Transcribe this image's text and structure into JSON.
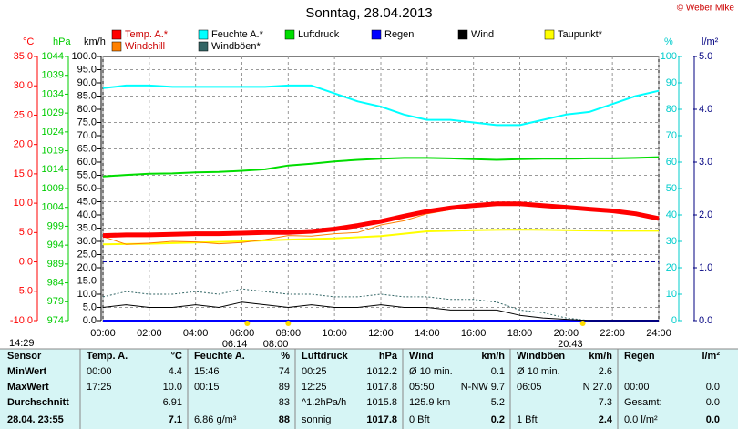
{
  "chart_data": {
    "type": "line",
    "title": "Sonntag, 28.04.2013",
    "credit": "© Weber Mike",
    "x": [
      0,
      1,
      2,
      3,
      4,
      5,
      6,
      7,
      8,
      9,
      10,
      11,
      12,
      13,
      14,
      15,
      16,
      17,
      18,
      19,
      20,
      21,
      22,
      23,
      24
    ],
    "xlim": [
      0,
      24
    ],
    "xticks": [
      {
        "value": 0,
        "label": "00:00"
      },
      {
        "value": 2,
        "label": "02:00"
      },
      {
        "value": 4,
        "label": "04:00"
      },
      {
        "value": 6,
        "label": "06:00"
      },
      {
        "value": 8,
        "label": "08:00"
      },
      {
        "value": 10,
        "label": "10:00"
      },
      {
        "value": 12,
        "label": "12:00"
      },
      {
        "value": 14,
        "label": "14:00"
      },
      {
        "value": 16,
        "label": "16:00"
      },
      {
        "value": 18,
        "label": "18:00"
      },
      {
        "value": 20,
        "label": "20:00"
      },
      {
        "value": 22,
        "label": "22:00"
      },
      {
        "value": 24,
        "label": "24:00"
      }
    ],
    "grid": true,
    "axes": {
      "temp": {
        "label": "°C",
        "color": "#ff0000",
        "side": "left",
        "lim": [
          -10,
          35
        ],
        "ticks": [
          {
            "value": -10,
            "label": "-10.0"
          },
          {
            "value": -5,
            "label": "-5.0"
          },
          {
            "value": 0,
            "label": "0.0"
          },
          {
            "value": 5,
            "label": "5.0"
          },
          {
            "value": 10,
            "label": "10.0"
          },
          {
            "value": 15,
            "label": "15.0"
          },
          {
            "value": 20,
            "label": "20.0"
          },
          {
            "value": 25,
            "label": "25.0"
          },
          {
            "value": 30,
            "label": "30.0"
          },
          {
            "value": 35,
            "label": "35.0"
          }
        ]
      },
      "pressure": {
        "label": "hPa",
        "color": "#00cc00",
        "side": "left",
        "lim": [
          974,
          1044
        ],
        "ticks": [
          974,
          979,
          984,
          989,
          994,
          999,
          1004,
          1009,
          1014,
          1019,
          1024,
          1029,
          1034,
          1039,
          1044
        ]
      },
      "wind": {
        "label": "km/h",
        "color": "#000000",
        "side": "left",
        "lim": [
          0,
          100
        ],
        "ticks": [
          {
            "value": 0,
            "label": "0.0"
          },
          {
            "value": 5,
            "label": "5.0"
          },
          {
            "value": 10,
            "label": "10.0"
          },
          {
            "value": 15,
            "label": "15.0"
          },
          {
            "value": 20,
            "label": "20.0"
          },
          {
            "value": 25,
            "label": "25.0"
          },
          {
            "value": 30,
            "label": "30.0"
          },
          {
            "value": 35,
            "label": "35.0"
          },
          {
            "value": 40,
            "label": "40.0"
          },
          {
            "value": 45,
            "label": "45.0"
          },
          {
            "value": 50,
            "label": "50.0"
          },
          {
            "value": 55,
            "label": "55.0"
          },
          {
            "value": 60,
            "label": "60.0"
          },
          {
            "value": 65,
            "label": "65.0"
          },
          {
            "value": 70,
            "label": "70.0"
          },
          {
            "value": 75,
            "label": "75.0"
          },
          {
            "value": 80,
            "label": "80.0"
          },
          {
            "value": 85,
            "label": "85.0"
          },
          {
            "value": 90,
            "label": "90.0"
          },
          {
            "value": 95,
            "label": "95.0"
          },
          {
            "value": 100,
            "label": "100.0"
          }
        ]
      },
      "humidity": {
        "label": "%",
        "color": "#00cccc",
        "side": "right",
        "lim": [
          0,
          100
        ],
        "ticks": [
          0,
          10,
          20,
          30,
          40,
          50,
          60,
          70,
          80,
          90,
          100
        ]
      },
      "rain": {
        "label": "l/m²",
        "color": "#000080",
        "side": "right",
        "lim": [
          0,
          5
        ],
        "ticks": [
          {
            "value": 0,
            "label": "0.0"
          },
          {
            "value": 1,
            "label": "1.0"
          },
          {
            "value": 2,
            "label": "2.0"
          },
          {
            "value": 3,
            "label": "3.0"
          },
          {
            "value": 4,
            "label": "4.0"
          },
          {
            "value": 5,
            "label": "5.0"
          }
        ]
      }
    },
    "series": [
      {
        "name": "Temp. A.*",
        "color": "#ff0000",
        "axis": "temp",
        "width": 5,
        "values": [
          4.5,
          4.6,
          4.6,
          4.7,
          4.8,
          4.8,
          4.9,
          5.0,
          5.0,
          5.2,
          5.6,
          6.2,
          6.9,
          7.8,
          8.6,
          9.2,
          9.6,
          9.9,
          9.9,
          9.6,
          9.3,
          9.0,
          8.7,
          8.2,
          7.4
        ]
      },
      {
        "name": "Feuchte A.*",
        "color": "#00ffff",
        "axis": "humidity",
        "width": 2,
        "values": [
          88,
          89,
          89,
          88.5,
          88.5,
          88.5,
          88.5,
          88.5,
          89,
          89,
          86,
          83,
          81,
          78,
          76,
          76,
          75,
          74,
          74,
          76,
          78,
          79,
          82,
          85,
          87
        ]
      },
      {
        "name": "Luftdruck",
        "color": "#00dd00",
        "axis": "pressure",
        "width": 2,
        "values": [
          1012.2,
          1012.6,
          1012.9,
          1013.0,
          1013.3,
          1013.4,
          1013.7,
          1014.1,
          1015.1,
          1015.6,
          1016.2,
          1016.6,
          1016.9,
          1017.1,
          1017.1,
          1017.0,
          1016.8,
          1016.6,
          1016.8,
          1016.9,
          1016.9,
          1017.0,
          1017.0,
          1017.1,
          1017.3
        ]
      },
      {
        "name": "Regen",
        "color": "#0000ff",
        "axis": "rain",
        "width": 2,
        "values": [
          0,
          0,
          0,
          0,
          0,
          0,
          0,
          0,
          0,
          0,
          0,
          0,
          0,
          0,
          0,
          0,
          0,
          0,
          0,
          0,
          0,
          0,
          0,
          0,
          0
        ]
      },
      {
        "name": "Wind",
        "color": "#000000",
        "axis": "wind",
        "width": 1,
        "values": [
          5,
          6,
          5,
          5,
          6,
          5,
          7,
          6,
          5,
          6,
          5,
          5,
          6,
          5,
          5,
          4,
          4,
          4,
          2,
          1,
          0.5,
          0,
          0,
          0,
          0
        ]
      },
      {
        "name": "Taupunkt*",
        "color": "#ffff00",
        "axis": "temp",
        "width": 2,
        "values": [
          3.0,
          3.05,
          3.1,
          3.2,
          3.3,
          3.4,
          3.5,
          3.65,
          3.8,
          3.9,
          4.0,
          4.2,
          4.4,
          4.8,
          5.2,
          5.3,
          5.4,
          5.45,
          5.5,
          5.45,
          5.4,
          5.35,
          5.3,
          5.3,
          5.3
        ]
      },
      {
        "name": "Windchill",
        "color": "#ff8000",
        "axis": "temp",
        "width": 1,
        "values": [
          4.3,
          3.0,
          3.2,
          3.5,
          3.4,
          3.1,
          3.3,
          3.8,
          4.5,
          4.4,
          4.8,
          5.0,
          6.3,
          7.0,
          8.2,
          8.9,
          9.5,
          9.9,
          9.9,
          9.6,
          9.3,
          9.0,
          8.7,
          8.2,
          7.4
        ]
      },
      {
        "name": "Windböen*",
        "color": "#336666",
        "axis": "wind",
        "width": 1,
        "dashed": true,
        "values": [
          9,
          11,
          10,
          10,
          11,
          10,
          12,
          11,
          10,
          10,
          9,
          9,
          10,
          9,
          9,
          8,
          8,
          7,
          4,
          3,
          1,
          0,
          0,
          0,
          0
        ]
      }
    ],
    "annotations": [
      {
        "text": "14:29",
        "x": null
      },
      {
        "text": "06:14",
        "x": 6.23
      },
      {
        "text": "08:00",
        "x": 8
      },
      {
        "text": "20:43",
        "x": 20.72
      }
    ]
  },
  "table": {
    "header": [
      "Sensor",
      "Temp. A.",
      "°C",
      "Feuchte A.",
      "%",
      "Luftdruck",
      "hPa",
      "Wind",
      "km/h",
      "Windböen",
      "km/h",
      "Regen",
      "l/m²"
    ],
    "rows": [
      [
        "MinWert",
        "00:00",
        "4.4",
        "15:46",
        "74",
        "00:25",
        "1012.2",
        "Ø 10 min.",
        "0.1",
        "Ø 10 min.",
        "2.6",
        null,
        null
      ],
      [
        "MaxWert",
        "17:25",
        "10.0",
        "00:15",
        "89",
        "12:25",
        "1017.8",
        "05:50",
        "N-NW 9.7",
        "06:05",
        "N 27.0",
        "00:00",
        "0.0"
      ],
      [
        "Durchschnitt",
        null,
        "6.91",
        null,
        "83",
        "^1.2hPa/h",
        "1015.8",
        "125.9 km",
        "5.2",
        null,
        "7.3",
        "Gesamt:",
        "0.0"
      ],
      [
        "28.04. 23:55",
        null,
        "7.1",
        "6.86 g/m³",
        "88",
        "sonnig",
        "1017.8",
        "0 Bft",
        "0.2",
        "1 Bft",
        "2.4",
        "0.0 l/m²",
        "0.0"
      ]
    ]
  }
}
